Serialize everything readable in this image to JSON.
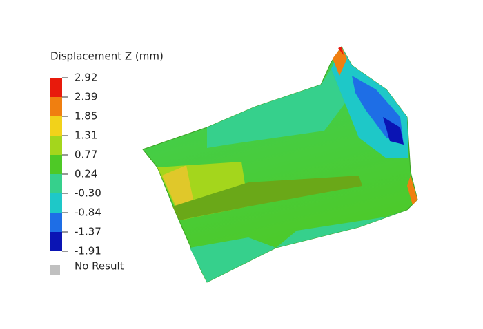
{
  "legend": {
    "title": "Displacement Z (mm)",
    "labels": [
      "2.92",
      "2.39",
      "1.85",
      "1.31",
      "0.77",
      "0.24",
      "-0.30",
      "-0.84",
      "-1.37",
      "-1.91"
    ],
    "colors": [
      "#e81a0c",
      "#f07f10",
      "#f2d21a",
      "#a4d61c",
      "#4ec926",
      "#36d08c",
      "#1ec8c8",
      "#1e6ee6",
      "#0a14b4"
    ],
    "no_result": "No Result",
    "no_result_color": "#c0c0c0"
  }
}
